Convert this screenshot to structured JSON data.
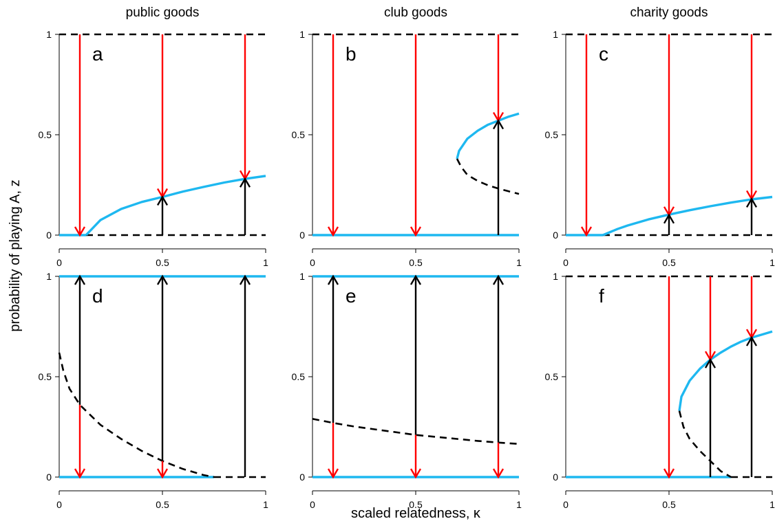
{
  "figure": {
    "column_titles": [
      "public goods",
      "club goods",
      "charity goods"
    ],
    "xlabel": "scaled relatedness, κ",
    "ylabel": "probability of playing A, z"
  },
  "colors": {
    "stable": "#1EB8F0",
    "unstable": "#000000",
    "arrow_down": "#FF0000",
    "arrow_up": "#000000"
  },
  "chart_data": [
    {
      "type": "line",
      "panel": "a",
      "column": "public goods",
      "xlim": [
        0,
        1
      ],
      "ylim": [
        0,
        1
      ],
      "xticks": [
        0,
        0.5,
        1
      ],
      "xtick_labels": [
        "0",
        "0.5",
        "1"
      ],
      "yticks": [
        0,
        0.5,
        1
      ],
      "ytick_labels": [
        "0",
        "0.5",
        "1"
      ],
      "grid": false,
      "series": [
        {
          "style": "dashed",
          "color": "#000000",
          "x": [
            0,
            1
          ],
          "y": [
            1,
            1
          ]
        },
        {
          "style": "solid",
          "color": "#1EB8F0",
          "x": [
            0,
            0.13
          ],
          "y": [
            0,
            0
          ]
        },
        {
          "style": "dashed",
          "color": "#000000",
          "x": [
            0.13,
            1
          ],
          "y": [
            0,
            0
          ]
        },
        {
          "style": "solid",
          "color": "#1EB8F0",
          "x": [
            0.13,
            0.2,
            0.3,
            0.4,
            0.5,
            0.6,
            0.7,
            0.8,
            0.9,
            1.0
          ],
          "y": [
            0,
            0.075,
            0.13,
            0.165,
            0.19,
            0.217,
            0.24,
            0.262,
            0.28,
            0.295
          ]
        }
      ],
      "arrows": [
        {
          "x": 0.1,
          "from": 1,
          "to": 0,
          "dir": "down"
        },
        {
          "x": 0.5,
          "from": 1,
          "to": 0.19,
          "dir": "down"
        },
        {
          "x": 0.5,
          "from": 0,
          "to": 0.19,
          "dir": "up"
        },
        {
          "x": 0.9,
          "from": 1,
          "to": 0.28,
          "dir": "down"
        },
        {
          "x": 0.9,
          "from": 0,
          "to": 0.28,
          "dir": "up"
        }
      ]
    },
    {
      "type": "line",
      "panel": "b",
      "column": "club goods",
      "xlim": [
        0,
        1
      ],
      "ylim": [
        0,
        1
      ],
      "xticks": [
        0,
        0.5,
        1
      ],
      "xtick_labels": [
        "0",
        "0.5",
        "1"
      ],
      "yticks": [
        0,
        0.5,
        1
      ],
      "ytick_labels": [
        "0",
        "0.5",
        "1"
      ],
      "grid": false,
      "series": [
        {
          "style": "dashed",
          "color": "#000000",
          "x": [
            0,
            1
          ],
          "y": [
            1,
            1
          ]
        },
        {
          "style": "solid",
          "color": "#1EB8F0",
          "x": [
            0,
            1
          ],
          "y": [
            0,
            0
          ]
        },
        {
          "style": "solid",
          "color": "#1EB8F0",
          "x": [
            0.7,
            0.71,
            0.75,
            0.8,
            0.85,
            0.9,
            0.95,
            1.0
          ],
          "y": [
            0.38,
            0.42,
            0.48,
            0.52,
            0.55,
            0.57,
            0.59,
            0.605
          ]
        },
        {
          "style": "dashed",
          "color": "#000000",
          "x": [
            0.7,
            0.72,
            0.75,
            0.8,
            0.85,
            0.9,
            0.95,
            1.0
          ],
          "y": [
            0.38,
            0.34,
            0.3,
            0.27,
            0.248,
            0.232,
            0.218,
            0.205
          ]
        }
      ],
      "arrows": [
        {
          "x": 0.1,
          "from": 1,
          "to": 0,
          "dir": "down"
        },
        {
          "x": 0.5,
          "from": 1,
          "to": 0,
          "dir": "down"
        },
        {
          "x": 0.9,
          "from": 1,
          "to": 0.57,
          "dir": "down"
        },
        {
          "x": 0.9,
          "from": 0,
          "to": 0.57,
          "dir": "up"
        }
      ]
    },
    {
      "type": "line",
      "panel": "c",
      "column": "charity goods",
      "xlim": [
        0,
        1
      ],
      "ylim": [
        0,
        1
      ],
      "xticks": [
        0,
        0.5,
        1
      ],
      "xtick_labels": [
        "0",
        "0.5",
        "1"
      ],
      "yticks": [
        0,
        0.5,
        1
      ],
      "ytick_labels": [
        "0",
        "0.5",
        "1"
      ],
      "grid": false,
      "series": [
        {
          "style": "dashed",
          "color": "#000000",
          "x": [
            0,
            1
          ],
          "y": [
            1,
            1
          ]
        },
        {
          "style": "solid",
          "color": "#1EB8F0",
          "x": [
            0,
            0.18
          ],
          "y": [
            0,
            0
          ]
        },
        {
          "style": "dashed",
          "color": "#000000",
          "x": [
            0.18,
            1
          ],
          "y": [
            0,
            0
          ]
        },
        {
          "style": "solid",
          "color": "#1EB8F0",
          "x": [
            0.18,
            0.25,
            0.3,
            0.4,
            0.5,
            0.6,
            0.7,
            0.8,
            0.9,
            1.0
          ],
          "y": [
            0,
            0.03,
            0.048,
            0.078,
            0.102,
            0.124,
            0.144,
            0.162,
            0.178,
            0.19
          ]
        }
      ],
      "arrows": [
        {
          "x": 0.1,
          "from": 1,
          "to": 0,
          "dir": "down"
        },
        {
          "x": 0.5,
          "from": 1,
          "to": 0.1,
          "dir": "down"
        },
        {
          "x": 0.5,
          "from": 0,
          "to": 0.1,
          "dir": "up"
        },
        {
          "x": 0.9,
          "from": 1,
          "to": 0.18,
          "dir": "down"
        },
        {
          "x": 0.9,
          "from": 0,
          "to": 0.18,
          "dir": "up"
        }
      ]
    },
    {
      "type": "line",
      "panel": "d",
      "column": "public goods",
      "xlim": [
        0,
        1
      ],
      "ylim": [
        0,
        1
      ],
      "xticks": [
        0,
        0.5,
        1
      ],
      "xtick_labels": [
        "0",
        "0.5",
        "1"
      ],
      "yticks": [
        0,
        0.5,
        1
      ],
      "ytick_labels": [
        "0",
        "0.5",
        "1"
      ],
      "grid": false,
      "series": [
        {
          "style": "solid",
          "color": "#1EB8F0",
          "x": [
            0,
            1
          ],
          "y": [
            1,
            1
          ]
        },
        {
          "style": "solid",
          "color": "#1EB8F0",
          "x": [
            0,
            0.75
          ],
          "y": [
            0,
            0
          ]
        },
        {
          "style": "dashed",
          "color": "#000000",
          "x": [
            0.75,
            1
          ],
          "y": [
            0,
            0
          ]
        },
        {
          "style": "dashed",
          "color": "#000000",
          "x": [
            0,
            0.02,
            0.05,
            0.1,
            0.2,
            0.3,
            0.4,
            0.5,
            0.6,
            0.7,
            0.75
          ],
          "y": [
            0.62,
            0.53,
            0.44,
            0.36,
            0.26,
            0.19,
            0.13,
            0.08,
            0.04,
            0.01,
            0
          ]
        }
      ],
      "arrows": [
        {
          "x": 0.1,
          "from": 0.36,
          "to": 1,
          "dir": "up"
        },
        {
          "x": 0.1,
          "from": 0.36,
          "to": 0,
          "dir": "down"
        },
        {
          "x": 0.5,
          "from": 0.08,
          "to": 1,
          "dir": "up"
        },
        {
          "x": 0.5,
          "from": 0.08,
          "to": 0,
          "dir": "down"
        },
        {
          "x": 0.9,
          "from": 0,
          "to": 1,
          "dir": "up"
        }
      ]
    },
    {
      "type": "line",
      "panel": "e",
      "column": "club goods",
      "xlim": [
        0,
        1
      ],
      "ylim": [
        0,
        1
      ],
      "xticks": [
        0,
        0.5,
        1
      ],
      "xtick_labels": [
        "0",
        "0.5",
        "1"
      ],
      "yticks": [
        0,
        0.5,
        1
      ],
      "ytick_labels": [
        "0",
        "0.5",
        "1"
      ],
      "grid": false,
      "series": [
        {
          "style": "solid",
          "color": "#1EB8F0",
          "x": [
            0,
            1
          ],
          "y": [
            1,
            1
          ]
        },
        {
          "style": "solid",
          "color": "#1EB8F0",
          "x": [
            0,
            1
          ],
          "y": [
            0,
            0
          ]
        },
        {
          "style": "dashed",
          "color": "#000000",
          "x": [
            0,
            0.1,
            0.2,
            0.3,
            0.4,
            0.5,
            0.6,
            0.7,
            0.8,
            0.9,
            1.0
          ],
          "y": [
            0.29,
            0.27,
            0.252,
            0.238,
            0.224,
            0.21,
            0.2,
            0.19,
            0.18,
            0.172,
            0.165
          ]
        }
      ],
      "arrows": [
        {
          "x": 0.1,
          "from": 0.27,
          "to": 1,
          "dir": "up"
        },
        {
          "x": 0.1,
          "from": 0.27,
          "to": 0,
          "dir": "down"
        },
        {
          "x": 0.5,
          "from": 0.21,
          "to": 1,
          "dir": "up"
        },
        {
          "x": 0.5,
          "from": 0.21,
          "to": 0,
          "dir": "down"
        },
        {
          "x": 0.9,
          "from": 0.172,
          "to": 1,
          "dir": "up"
        },
        {
          "x": 0.9,
          "from": 0.172,
          "to": 0,
          "dir": "down"
        }
      ]
    },
    {
      "type": "line",
      "panel": "f",
      "column": "charity goods",
      "xlim": [
        0,
        1
      ],
      "ylim": [
        0,
        1
      ],
      "xticks": [
        0,
        0.5,
        1
      ],
      "xtick_labels": [
        "0",
        "0.5",
        "1"
      ],
      "yticks": [
        0,
        0.5,
        1
      ],
      "ytick_labels": [
        "0",
        "0.5",
        "1"
      ],
      "grid": false,
      "series": [
        {
          "style": "dashed",
          "color": "#000000",
          "x": [
            0,
            1
          ],
          "y": [
            1,
            1
          ]
        },
        {
          "style": "solid",
          "color": "#1EB8F0",
          "x": [
            0,
            0.8
          ],
          "y": [
            0,
            0
          ]
        },
        {
          "style": "dashed",
          "color": "#000000",
          "x": [
            0.8,
            1
          ],
          "y": [
            0,
            0
          ]
        },
        {
          "style": "solid",
          "color": "#1EB8F0",
          "x": [
            0.55,
            0.56,
            0.6,
            0.65,
            0.7,
            0.75,
            0.8,
            0.85,
            0.9,
            0.95,
            1.0
          ],
          "y": [
            0.33,
            0.4,
            0.48,
            0.54,
            0.585,
            0.62,
            0.65,
            0.675,
            0.695,
            0.71,
            0.725
          ]
        },
        {
          "style": "dashed",
          "color": "#000000",
          "x": [
            0.55,
            0.57,
            0.6,
            0.65,
            0.7,
            0.75,
            0.8
          ],
          "y": [
            0.33,
            0.25,
            0.19,
            0.13,
            0.08,
            0.03,
            0
          ]
        }
      ],
      "arrows": [
        {
          "x": 0.5,
          "from": 1,
          "to": 0,
          "dir": "down"
        },
        {
          "x": 0.7,
          "from": 1,
          "to": 0.585,
          "dir": "down"
        },
        {
          "x": 0.7,
          "from": 0,
          "to": 0.585,
          "dir": "up"
        },
        {
          "x": 0.9,
          "from": 1,
          "to": 0.695,
          "dir": "down"
        },
        {
          "x": 0.9,
          "from": 0,
          "to": 0.695,
          "dir": "up"
        }
      ]
    }
  ]
}
